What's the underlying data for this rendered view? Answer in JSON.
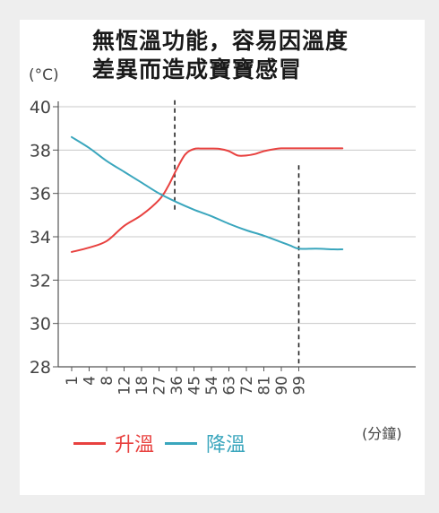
{
  "title_lines": [
    "無恆溫功能，容易因溫度",
    "差異而造成寶寶感冒"
  ],
  "y_unit": "(°C)",
  "x_unit": "(分鐘)",
  "colors": {
    "heating": "#e8413f",
    "cooling": "#3aa6bd",
    "grid": "#c8c8c8",
    "axis": "#555555"
  },
  "chart_data": {
    "type": "line",
    "title": "無恆溫功能，容易因溫度差異而造成寶寶感冒",
    "xlabel": "(分鐘)",
    "ylabel": "(°C)",
    "ylim": [
      28,
      40
    ],
    "yticks": [
      28,
      30,
      32,
      34,
      36,
      38,
      40
    ],
    "categories": [
      "1",
      "4",
      "8",
      "12",
      "18",
      "27",
      "36",
      "45",
      "54",
      "63",
      "72",
      "81",
      "90",
      "99"
    ],
    "grid": "horizontal",
    "legend": "bottom",
    "series": [
      {
        "name": "升溫",
        "color": "#e8413f",
        "x": [
          0,
          1,
          2,
          3,
          4,
          5,
          5.5,
          6,
          6.5,
          7,
          7.5,
          8,
          8.5,
          9,
          9.5,
          10,
          10.5,
          11,
          11.5,
          12,
          12.5,
          13,
          13.5,
          14,
          14.5,
          15,
          15.5
        ],
        "values": [
          33.3,
          33.5,
          33.8,
          34.5,
          35.0,
          35.7,
          36.3,
          37.1,
          37.8,
          38.05,
          38.07,
          38.07,
          38.05,
          37.95,
          37.75,
          37.75,
          37.82,
          37.95,
          38.03,
          38.08,
          38.08,
          38.08,
          38.08,
          38.08,
          38.08,
          38.08,
          38.08
        ]
      },
      {
        "name": "降溫",
        "color": "#3aa6bd",
        "x": [
          0,
          1,
          2,
          3,
          4,
          5,
          6,
          7,
          8,
          9,
          10,
          11,
          12,
          12.5,
          13,
          14,
          15,
          15.5
        ],
        "values": [
          38.6,
          38.1,
          37.5,
          37.0,
          36.5,
          36.0,
          35.6,
          35.25,
          34.95,
          34.6,
          34.3,
          34.05,
          33.75,
          33.6,
          33.45,
          33.45,
          33.42,
          33.42
        ]
      }
    ],
    "reference_lines": [
      {
        "x": 5.9,
        "from": 35.2,
        "to": 40.3,
        "style": "dashed"
      },
      {
        "x": 13.0,
        "from": 28.0,
        "to": 37.3,
        "style": "dashed"
      }
    ]
  }
}
